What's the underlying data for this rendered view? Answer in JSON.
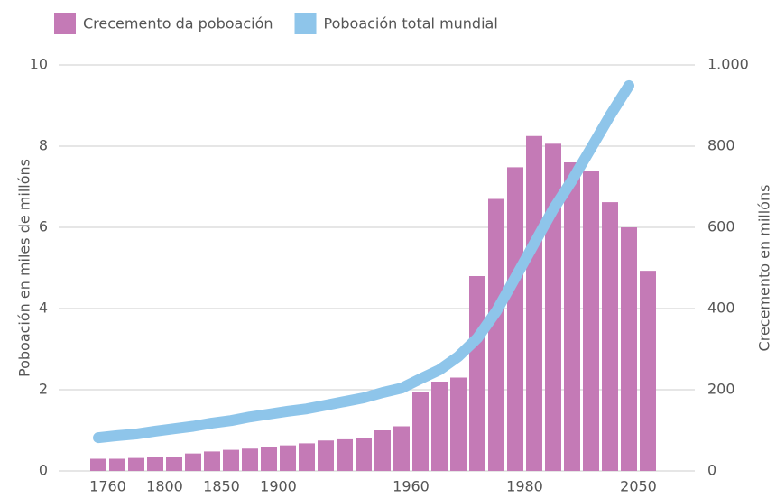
{
  "chart_data": {
    "type": "bar",
    "y_label": "Poboación en miles de millóns",
    "y2_label": "Crecemento en millóns",
    "categories": [
      "1760",
      null,
      null,
      "1800",
      null,
      null,
      "1850",
      null,
      null,
      "1900",
      null,
      null,
      null,
      null,
      null,
      null,
      "1960",
      null,
      null,
      null,
      null,
      null,
      "1980",
      null,
      null,
      null,
      null,
      null,
      "2050",
      null
    ],
    "series": [
      {
        "name": "Crecemento da poboación",
        "color": "#c47ab6",
        "type": "bar",
        "axis": "y2",
        "values": [
          30,
          30,
          32,
          35,
          35,
          43,
          48,
          52,
          55,
          58,
          63,
          68,
          75,
          78,
          81,
          100,
          110,
          195,
          220,
          230,
          480,
          670,
          748,
          825,
          806,
          760,
          740,
          662,
          600,
          493
        ]
      },
      {
        "name": "Poboación total mundial",
        "color": "#8ec5ea",
        "type": "line",
        "axis": "y",
        "values": [
          0.82,
          0.87,
          0.91,
          0.98,
          1.04,
          1.1,
          1.18,
          1.24,
          1.33,
          1.4,
          1.47,
          1.53,
          1.62,
          1.71,
          1.8,
          1.93,
          2.04,
          2.27,
          2.49,
          2.82,
          3.27,
          3.93,
          4.76,
          5.6,
          6.44,
          7.16,
          7.95,
          8.75,
          9.49,
          null
        ]
      }
    ],
    "ylim": [
      0,
      10
    ],
    "yticks": [
      0,
      2,
      4,
      6,
      8,
      10
    ],
    "y2lim": [
      0,
      1000
    ],
    "y2ticks": [
      0,
      200,
      400,
      600,
      800,
      {
        "value": 1000,
        "label": "1.000"
      }
    ],
    "grid": true,
    "legend": "top"
  }
}
